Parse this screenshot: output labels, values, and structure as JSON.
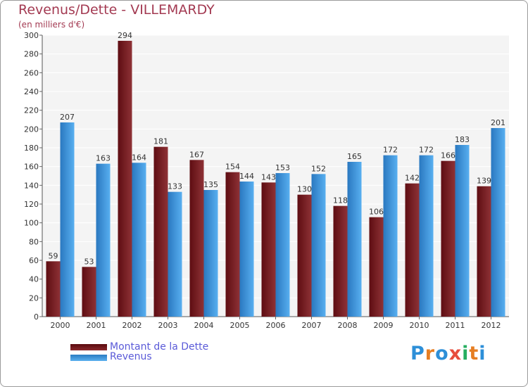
{
  "chart_data": {
    "type": "bar",
    "title": "Revenus/Dette - VILLEMARDY",
    "subtitle": "(en milliers d'€)",
    "categories": [
      "2000",
      "2001",
      "2002",
      "2003",
      "2004",
      "2005",
      "2006",
      "2007",
      "2008",
      "2009",
      "2010",
      "2011",
      "2012"
    ],
    "series": [
      {
        "name": "Montant de la Dette",
        "color": "#7a1f24",
        "values": [
          59,
          53,
          294,
          181,
          167,
          154,
          143,
          130,
          118,
          106,
          142,
          166,
          139
        ]
      },
      {
        "name": "Revenus",
        "color": "#3f9be0",
        "values": [
          207,
          163,
          164,
          133,
          135,
          144,
          153,
          152,
          165,
          172,
          172,
          183,
          201
        ]
      }
    ],
    "ylim": [
      0,
      300
    ],
    "yticks": [
      0,
      20,
      40,
      60,
      80,
      100,
      120,
      140,
      160,
      180,
      200,
      220,
      240,
      260,
      280,
      300
    ],
    "grid": true,
    "legend_position": "bottom-left"
  },
  "logo": {
    "text": "Proxiti"
  }
}
